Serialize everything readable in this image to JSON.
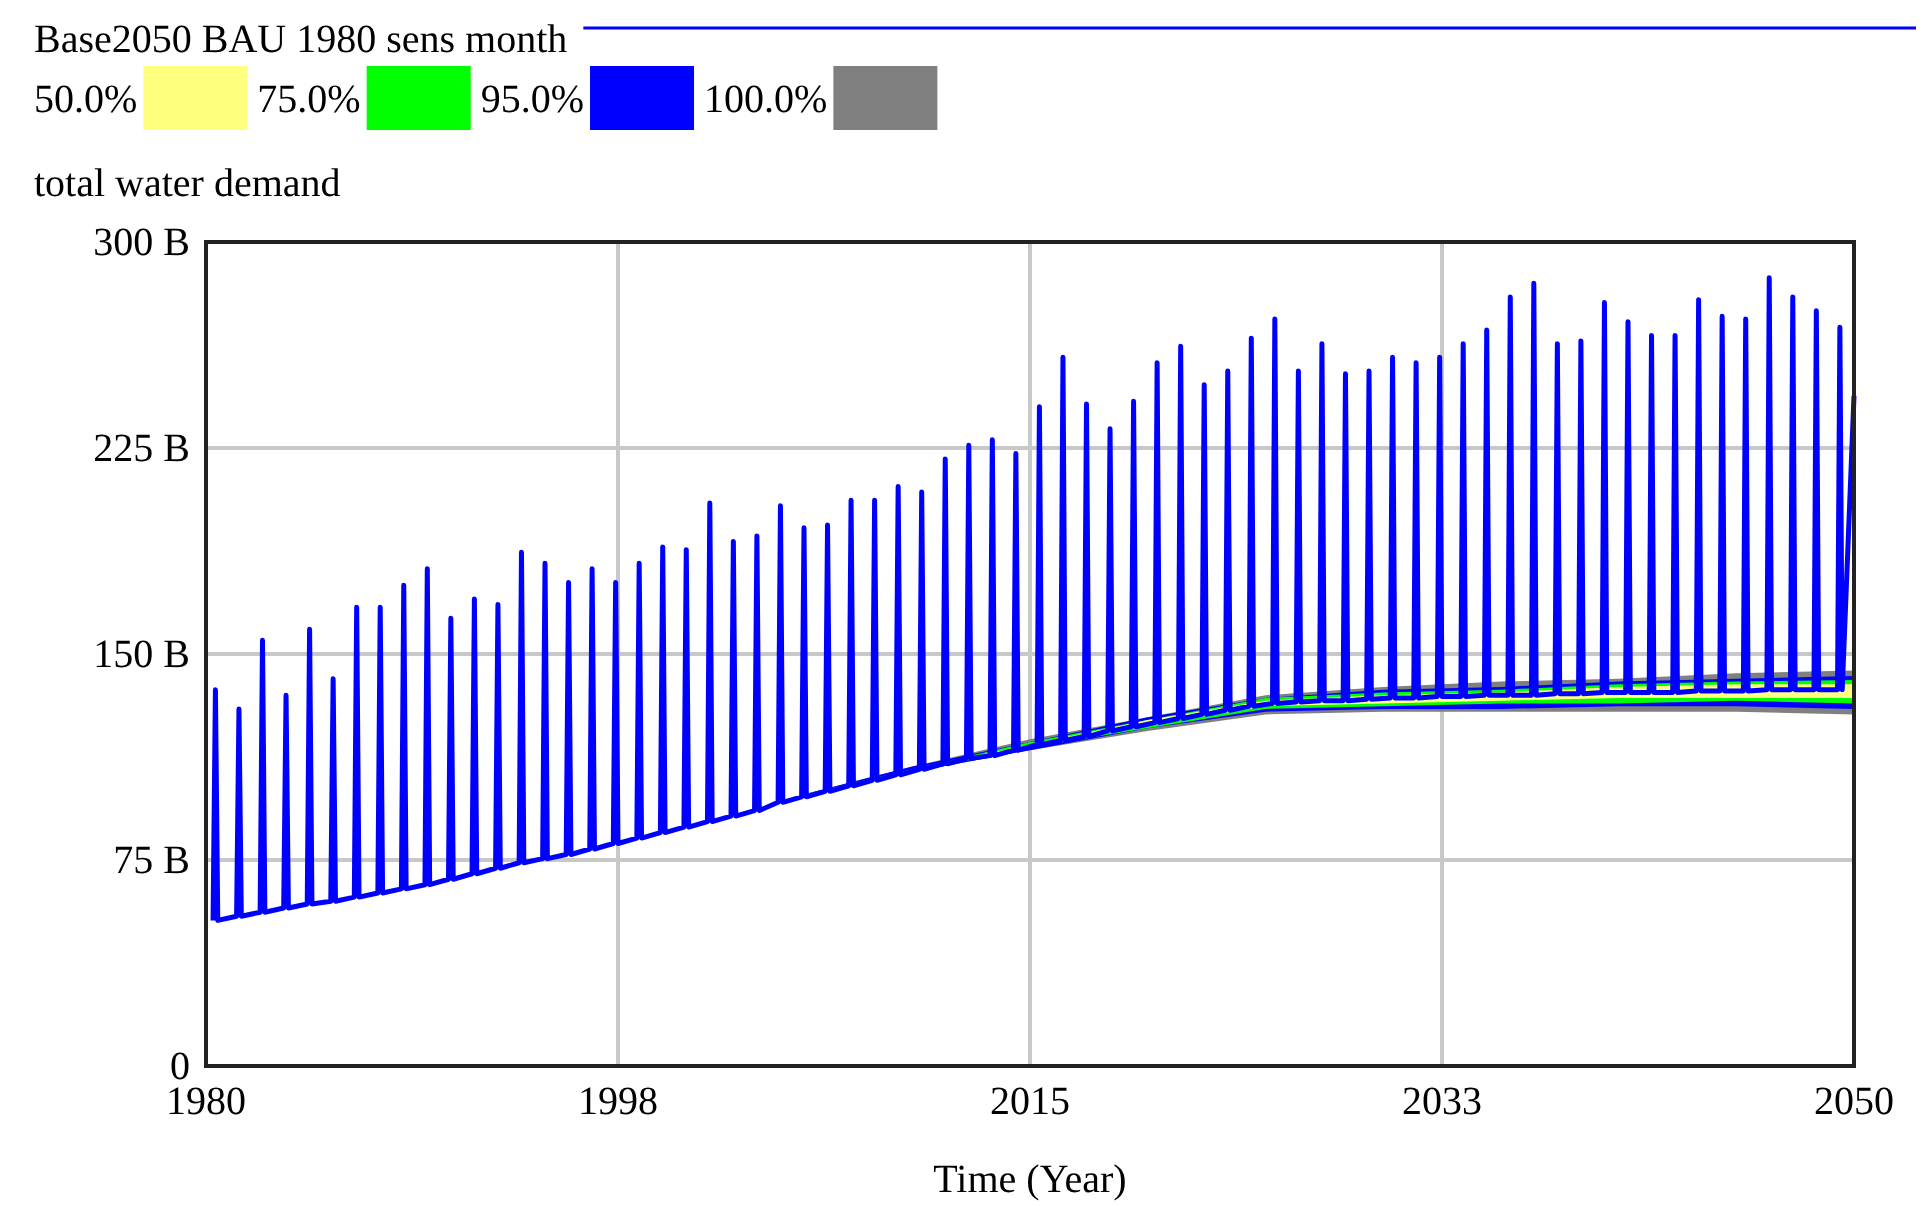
{
  "chart_data": {
    "type": "line",
    "ylabel": "total water demand",
    "xlabel": "Time (Year)",
    "xlim": [
      1980,
      2050
    ],
    "xticks": [
      1980,
      {
        "value": 1997.5,
        "label": "1998"
      },
      2015,
      {
        "value": 2032.5,
        "label": "2033"
      },
      2050
    ],
    "ylim": [
      0,
      300
    ],
    "yticks": [
      0,
      {
        "value": 75,
        "label": "75 B"
      },
      {
        "value": 150,
        "label": "150 B"
      },
      {
        "value": 225,
        "label": "225 B"
      },
      {
        "value": 300,
        "label": "300 B"
      }
    ],
    "grid": true,
    "legend": "top",
    "series": [
      {
        "name": "Base2050 BAU 1980 sens month",
        "color": "#0000ff",
        "type": "line",
        "x": [
          1980.3,
          1980.4,
          1980.5,
          1981.3,
          1981.4,
          1981.5,
          1982.3,
          1982.4,
          1982.5,
          1983.3,
          1983.4,
          1983.5,
          1984.3,
          1984.4,
          1984.5,
          1985.3,
          1985.4,
          1985.5,
          1986.3,
          1986.4,
          1986.5,
          1987.3,
          1987.4,
          1987.5,
          1988.3,
          1988.4,
          1988.5,
          1989.3,
          1989.4,
          1989.5,
          1990.3,
          1990.4,
          1990.5,
          1991.3,
          1991.4,
          1991.5,
          1992.3,
          1992.4,
          1992.5,
          1993.3,
          1993.4,
          1993.5,
          1994.3,
          1994.4,
          1994.5,
          1995.3,
          1995.4,
          1995.5,
          1996.3,
          1996.4,
          1996.5,
          1997.3,
          1997.4,
          1997.5,
          1998.3,
          1998.4,
          1998.5,
          1999.3,
          1999.4,
          1999.5,
          2000.3,
          2000.4,
          2000.5,
          2001.3,
          2001.4,
          2001.5,
          2002.3,
          2002.4,
          2002.5,
          2003.3,
          2003.4,
          2003.5,
          2004.3,
          2004.4,
          2004.5,
          2005.3,
          2005.4,
          2005.5,
          2006.3,
          2006.4,
          2006.5,
          2007.3,
          2007.4,
          2007.5,
          2008.3,
          2008.4,
          2008.5,
          2009.3,
          2009.4,
          2009.5,
          2010.3,
          2010.4,
          2010.5,
          2011.3,
          2011.4,
          2011.5,
          2012.3,
          2012.4,
          2012.5,
          2013.3,
          2013.4,
          2013.5,
          2014.3,
          2014.4,
          2014.5,
          2015.3,
          2015.4,
          2015.5,
          2016.3,
          2016.4,
          2016.5,
          2017.3,
          2017.4,
          2017.5,
          2018.3,
          2018.4,
          2018.5,
          2019.3,
          2019.4,
          2019.5,
          2020.3,
          2020.4,
          2020.5,
          2021.3,
          2021.4,
          2021.5,
          2022.3,
          2022.4,
          2022.5,
          2023.3,
          2023.4,
          2023.5,
          2024.3,
          2024.4,
          2024.5,
          2025.3,
          2025.4,
          2025.5,
          2026.3,
          2026.4,
          2026.5,
          2027.3,
          2027.4,
          2027.5,
          2028.3,
          2028.4,
          2028.5,
          2029.3,
          2029.4,
          2029.5,
          2030.3,
          2030.4,
          2030.5,
          2031.3,
          2031.4,
          2031.5,
          2032.3,
          2032.4,
          2032.5,
          2033.3,
          2033.4,
          2033.5,
          2034.3,
          2034.4,
          2034.5,
          2035.3,
          2035.4,
          2035.5,
          2036.3,
          2036.4,
          2036.5,
          2037.3,
          2037.4,
          2037.5,
          2038.3,
          2038.4,
          2038.5,
          2039.3,
          2039.4,
          2039.5,
          2040.3,
          2040.4,
          2040.5,
          2041.3,
          2041.4,
          2041.5,
          2042.3,
          2042.4,
          2042.5,
          2043.3,
          2043.4,
          2043.5,
          2044.3,
          2044.4,
          2044.5,
          2045.3,
          2045.4,
          2045.5,
          2046.3,
          2046.4,
          2046.5,
          2047.3,
          2047.4,
          2047.5,
          2048.3,
          2048.4,
          2048.5,
          2049.3,
          2049.4,
          2049.5,
          2050
        ],
        "values": [
          53,
          137,
          53,
          54.5,
          130,
          54.5,
          56,
          155,
          56,
          57.5,
          135,
          57.5,
          59,
          159,
          59,
          60,
          141,
          60,
          61.5,
          167,
          61.5,
          63,
          167,
          63,
          64.5,
          175,
          64.5,
          66,
          181,
          66,
          68,
          163,
          68,
          70,
          170,
          70,
          72,
          168,
          72,
          74,
          187,
          74,
          75.5,
          183,
          75.5,
          77,
          176,
          77,
          79,
          181,
          79,
          81,
          176,
          81,
          83,
          183,
          83,
          85,
          189,
          85,
          87,
          188,
          87,
          89,
          205,
          89,
          91,
          191,
          91,
          93,
          193,
          93,
          96,
          204,
          96,
          98,
          196,
          98,
          100,
          197,
          100,
          102,
          206,
          102,
          104,
          206,
          104,
          106,
          211,
          106,
          108,
          209,
          108,
          110,
          221,
          110,
          112,
          226,
          112,
          113,
          228,
          113,
          115,
          223,
          115,
          117,
          240,
          117,
          118.5,
          258,
          118.5,
          120,
          241,
          120,
          122,
          232,
          122,
          123.5,
          242,
          123.5,
          125,
          256,
          125,
          126.5,
          262,
          126.5,
          128,
          248,
          128,
          129.5,
          253,
          129.5,
          131,
          265,
          131,
          132,
          272,
          132,
          132.5,
          253,
          132.5,
          133,
          263,
          133,
          133,
          252,
          133,
          133.5,
          253,
          133.5,
          134,
          258,
          134,
          134,
          256,
          134,
          134.5,
          258,
          134.5,
          134.5,
          263,
          134.5,
          135,
          268,
          135,
          135,
          280,
          135,
          135,
          285,
          135,
          135.5,
          263,
          135.5,
          135.5,
          264,
          135.5,
          136,
          278,
          136,
          136,
          271,
          136,
          136,
          266,
          136,
          136,
          266,
          136,
          136.5,
          279,
          136.5,
          136.5,
          273,
          136.5,
          136.5,
          272,
          136.5,
          137,
          287,
          137,
          137,
          280,
          137,
          137,
          275,
          137,
          137,
          269,
          137,
          244
        ]
      },
      {
        "name": "50.0%",
        "color": "#ffff80",
        "type": "line",
        "x": [
          1980,
          1985,
          1990,
          1995,
          2000,
          2005,
          2010,
          2015,
          2020,
          2025,
          2030,
          2035,
          2040,
          2045,
          2050
        ],
        "values": [
          null,
          null,
          null,
          null,
          null,
          null,
          null,
          null,
          null,
          null,
          null,
          null,
          null,
          null,
          null
        ],
        "lower": [
          53,
          60,
          68,
          77,
          87,
          98,
          108,
          116,
          124,
          131,
          132,
          133,
          134,
          134,
          134
        ],
        "upper": [
          53,
          60,
          68,
          77,
          87,
          98,
          108,
          117,
          126,
          133,
          135,
          136,
          138,
          139,
          139
        ]
      },
      {
        "name": "75.0%",
        "color": "#00ff00",
        "type": "line",
        "x": [
          1980,
          1985,
          1990,
          1995,
          2000,
          2005,
          2010,
          2015,
          2020,
          2025,
          2030,
          2035,
          2040,
          2045,
          2050
        ],
        "values": [
          null,
          null,
          null,
          null,
          null,
          null,
          null,
          null,
          null,
          null,
          null,
          null,
          null,
          null,
          null
        ],
        "lower": [
          53,
          60,
          68,
          77,
          87,
          98,
          107,
          116,
          123,
          130,
          131,
          132,
          132,
          133,
          132
        ],
        "upper": [
          53,
          60,
          68,
          77,
          87,
          98,
          108,
          118,
          126,
          134,
          136,
          137,
          139,
          140,
          140.5
        ]
      },
      {
        "name": "95.0%",
        "color": "#0000ff",
        "type": "line",
        "x": [
          1980,
          1985,
          1990,
          1995,
          2000,
          2005,
          2010,
          2015,
          2020,
          2025,
          2030,
          2035,
          2040,
          2045,
          2050
        ],
        "values": [
          null,
          null,
          null,
          null,
          null,
          null,
          null,
          null,
          null,
          null,
          null,
          null,
          null,
          null,
          null
        ],
        "lower": [
          53,
          60,
          68,
          77,
          87,
          98,
          107,
          115,
          123,
          129,
          130,
          130,
          131,
          131,
          130
        ],
        "upper": [
          53,
          60,
          68,
          77,
          87,
          98,
          109,
          118,
          127,
          134,
          137,
          138,
          140,
          141,
          142
        ]
      },
      {
        "name": "100.0%",
        "color": "#808080",
        "type": "line",
        "x": [
          1980,
          1985,
          1990,
          1995,
          2000,
          2005,
          2010,
          2015,
          2020,
          2025,
          2030,
          2035,
          2040,
          2045,
          2050
        ],
        "values": [
          null,
          null,
          null,
          null,
          null,
          null,
          null,
          null,
          null,
          null,
          null,
          null,
          null,
          null,
          null
        ],
        "lower": [
          53,
          60,
          68,
          77,
          87,
          98,
          107,
          115,
          122,
          128,
          129,
          129,
          129,
          129,
          128
        ],
        "upper": [
          53,
          60,
          68,
          77,
          87,
          98,
          109,
          119,
          127,
          135,
          138,
          140,
          141,
          143,
          144
        ]
      }
    ]
  }
}
